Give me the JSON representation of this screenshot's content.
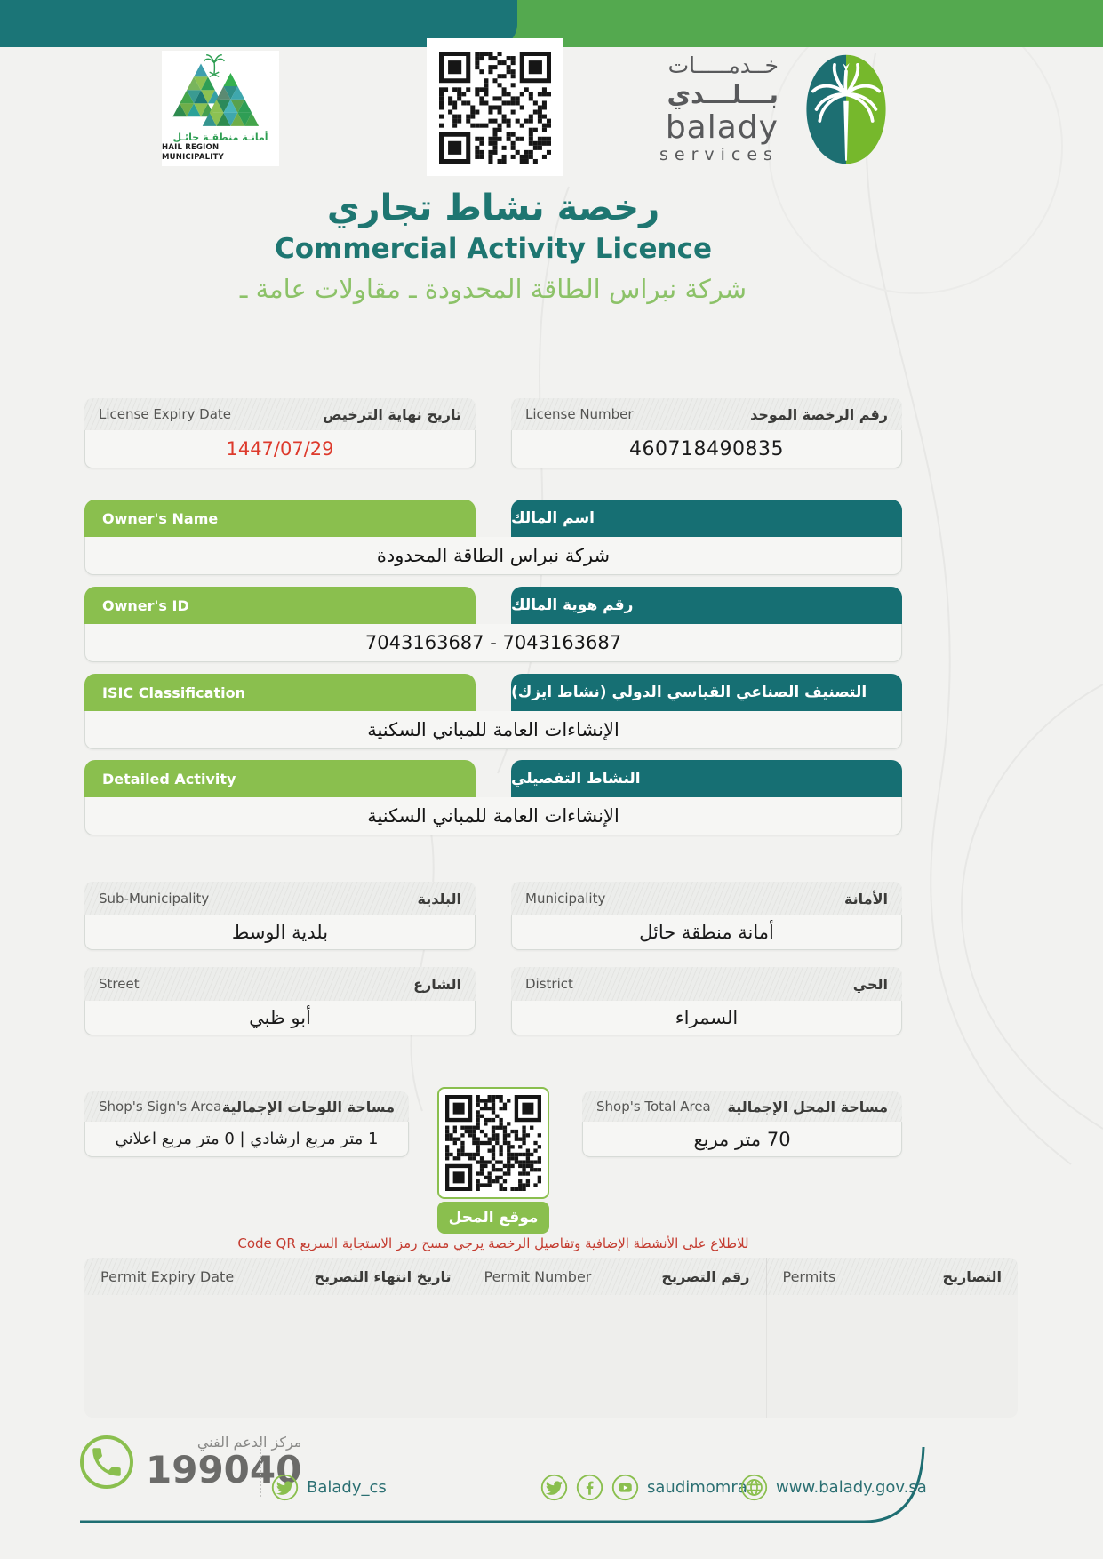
{
  "colors": {
    "teal": "#1e7671",
    "bar_teal": "#1b7577",
    "green_pill": "#8abf4e",
    "bar_green": "#54a94f",
    "company_green": "#8cc268",
    "red": "#dd3a2c"
  },
  "header": {
    "municipality_logo": {
      "ar": "أمانـة منطقـة حائـل",
      "en": "HAIL REGION MUNICIPALITY"
    },
    "balady_logo": {
      "ar_line1": "خــدمـــــات",
      "ar_line2": "بـــلـــدي",
      "en_line1": "balady",
      "en_line2": "services"
    }
  },
  "title": {
    "ar": "رخصة نشاط تجاري",
    "en": "Commercial Activity Licence",
    "company": "شركة نبراس الطاقة المحدودة  ـ مقاولات عامة ـ"
  },
  "fields": {
    "license_expiry": {
      "en": "License Expiry Date",
      "ar": "تاريخ نهاية الترخيص",
      "value": "1447/07/29"
    },
    "license_number": {
      "en": "License Number",
      "ar": "رقم الرخصة الموحد",
      "value": "460718490835"
    },
    "owner_name": {
      "en": "Owner's Name",
      "ar": "اسم المالك",
      "value": "شركة نبراس الطاقة المحدودة"
    },
    "owner_id": {
      "en": "Owner's ID",
      "ar": "رقم هوية المالك",
      "value": "7043163687 - 7043163687"
    },
    "isic": {
      "en": "ISIC Classification",
      "ar": "التصنيف الصناعي القياسي الدولي (نشاط ايزك)",
      "value": "الإنشاءات العامة للمباني السكنية"
    },
    "detailed_activity": {
      "en": "Detailed Activity",
      "ar": "النشاط التفصيلي",
      "value": "الإنشاءات العامة للمباني السكنية"
    },
    "sub_municipality": {
      "en": "Sub-Municipality",
      "ar": "البلدية",
      "value": "بلدية الوسط"
    },
    "municipality": {
      "en": "Municipality",
      "ar": "الأمانة",
      "value": "أمانة منطقة حائل"
    },
    "street": {
      "en": "Street",
      "ar": "الشارع",
      "value": "أبو ظبي"
    },
    "district": {
      "en": "District",
      "ar": "الحي",
      "value": "السمراء"
    },
    "sign_area": {
      "en": "Shop's Sign's Area",
      "ar": "مساحة اللوحات الإجمالية",
      "value": "1    متر مربع ارشادي  |  0    متر مربع اعلاني"
    },
    "total_area": {
      "en": "Shop's Total Area",
      "ar": "مساحة المحل الإجمالية",
      "value": "70 متر مربع"
    }
  },
  "qr_section": {
    "location_label": "موقع المحل",
    "note": "للاطلاع على الأنشطة الإضافية وتفاصيل الرخصة يرجي مسح رمز الاستجابة السريع Code QR"
  },
  "permits_table": {
    "columns": [
      {
        "en": "Permit Expiry Date",
        "ar": "تاريخ انتهاء التصريح"
      },
      {
        "en": "Permit Number",
        "ar": "رقم التصريح"
      },
      {
        "en": "Permits",
        "ar": "التصاريح"
      }
    ]
  },
  "footer": {
    "support_label": "مركز الدعم الفني",
    "support_number": "199040",
    "twitter_handle": "Balady_cs",
    "social_handle": "saudimomra",
    "website": "www.balady.gov.sa"
  }
}
